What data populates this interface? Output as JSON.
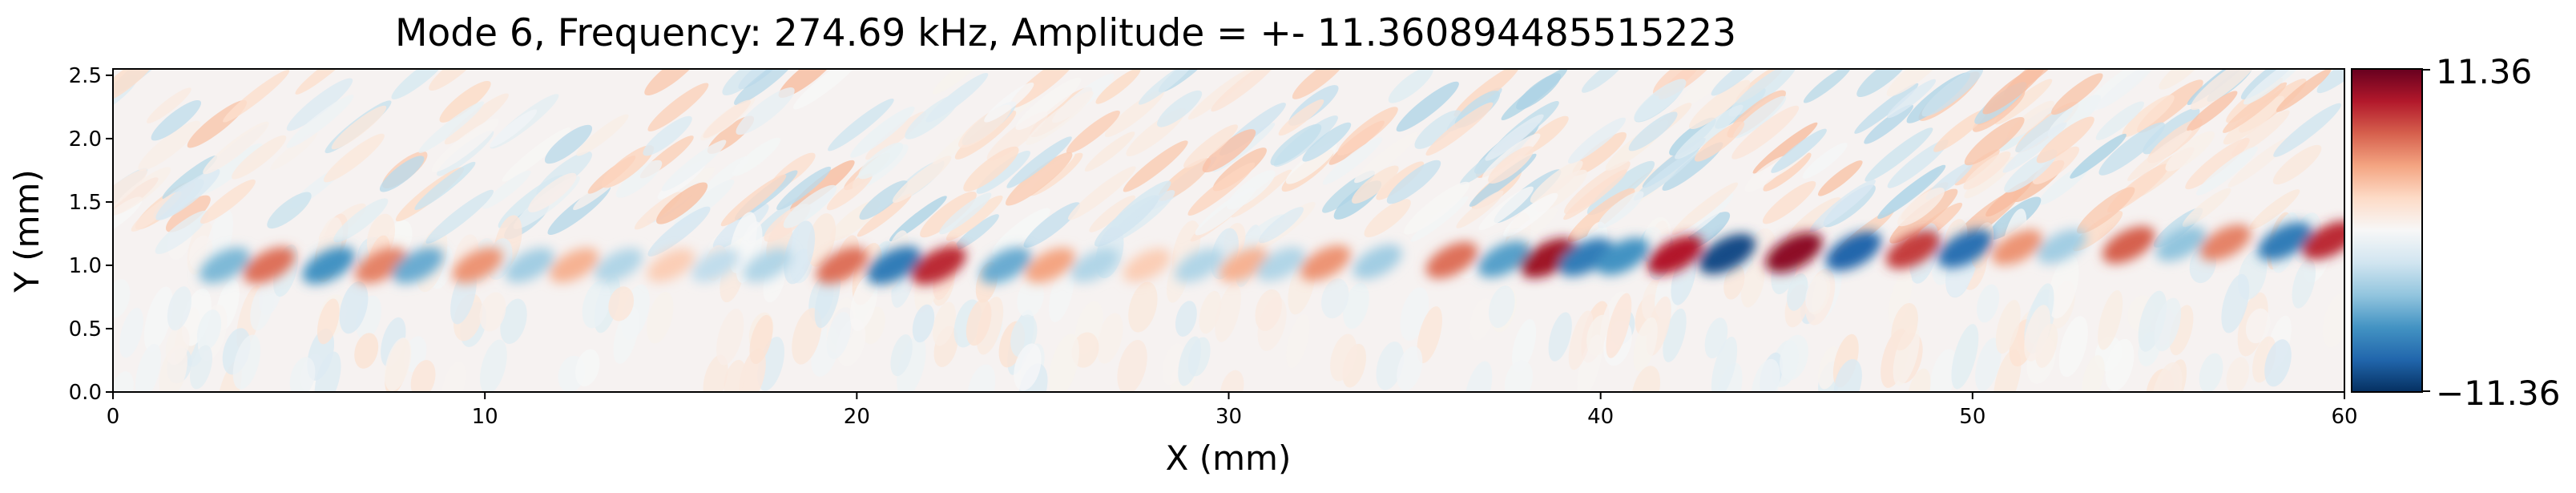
{
  "chart_data": {
    "type": "heatmap",
    "title": "Mode 6, Frequency: 274.69 kHz, Amplitude = +- 11.360894485515223",
    "xlabel": "X (mm)",
    "ylabel": "Y (mm)",
    "xlim": [
      0,
      60
    ],
    "ylim": [
      0,
      2.55
    ],
    "x_ticks": [
      "0",
      "10",
      "20",
      "30",
      "40",
      "50",
      "60"
    ],
    "y_ticks": [
      "0.0",
      "0.5",
      "1.0",
      "1.5",
      "2.0",
      "2.5"
    ],
    "colormap": "RdBu_r",
    "colorbar": {
      "min": -11.36,
      "max": 11.36,
      "tick_labels": [
        "11.36",
        "−11.36"
      ]
    },
    "colors": {
      "dark_red": "#67001f",
      "red": "#d6604d",
      "light_red": "#fddbc7",
      "white": "#f7f7f7",
      "light_blue": "#d1e5f0",
      "blue": "#4393c3",
      "dark_blue": "#053061"
    },
    "wave_band": {
      "y_center_mm": 1.0,
      "y_center_right_mm": 1.2,
      "wavelength_mm": 1.7,
      "blobs": [
        {
          "x": 3.0,
          "v": -0.45
        },
        {
          "x": 4.2,
          "v": 0.55
        },
        {
          "x": 5.8,
          "v": -0.6
        },
        {
          "x": 7.2,
          "v": 0.5
        },
        {
          "x": 8.2,
          "v": -0.5
        },
        {
          "x": 9.8,
          "v": 0.45
        },
        {
          "x": 11.2,
          "v": -0.35
        },
        {
          "x": 12.4,
          "v": 0.35
        },
        {
          "x": 13.6,
          "v": -0.3
        },
        {
          "x": 15.0,
          "v": 0.25
        },
        {
          "x": 16.2,
          "v": -0.25
        },
        {
          "x": 17.6,
          "v": -0.3
        },
        {
          "x": 19.6,
          "v": 0.55
        },
        {
          "x": 21.0,
          "v": -0.7
        },
        {
          "x": 22.2,
          "v": 0.75
        },
        {
          "x": 24.0,
          "v": -0.5
        },
        {
          "x": 25.2,
          "v": 0.4
        },
        {
          "x": 26.4,
          "v": -0.3
        },
        {
          "x": 27.8,
          "v": 0.25
        },
        {
          "x": 29.2,
          "v": -0.3
        },
        {
          "x": 30.4,
          "v": 0.35
        },
        {
          "x": 31.4,
          "v": -0.3
        },
        {
          "x": 32.6,
          "v": 0.45
        },
        {
          "x": 34.0,
          "v": -0.35
        },
        {
          "x": 36.0,
          "v": 0.55
        },
        {
          "x": 37.4,
          "v": -0.55
        },
        {
          "x": 38.6,
          "v": 0.85
        },
        {
          "x": 39.6,
          "v": -0.7
        },
        {
          "x": 40.6,
          "v": -0.6
        },
        {
          "x": 42.0,
          "v": 0.8
        },
        {
          "x": 43.4,
          "v": -0.9
        },
        {
          "x": 45.2,
          "v": 0.9
        },
        {
          "x": 46.8,
          "v": -0.8
        },
        {
          "x": 48.4,
          "v": 0.7
        },
        {
          "x": 49.8,
          "v": -0.75
        },
        {
          "x": 51.2,
          "v": 0.45
        },
        {
          "x": 52.4,
          "v": -0.35
        },
        {
          "x": 54.2,
          "v": 0.6
        },
        {
          "x": 55.6,
          "v": -0.4
        },
        {
          "x": 56.8,
          "v": 0.5
        },
        {
          "x": 58.4,
          "v": -0.7
        },
        {
          "x": 59.6,
          "v": 0.75
        }
      ]
    }
  }
}
